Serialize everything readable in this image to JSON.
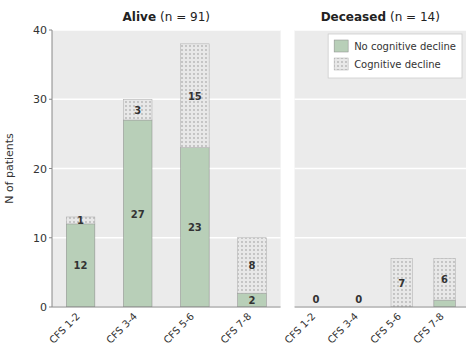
{
  "chart_data": [
    {
      "type": "bar",
      "stacked": true,
      "title": "Alive",
      "subtitle": "(n = 91)",
      "y_label": "N of patients",
      "categories": [
        "CFS 1-2",
        "CFS 3-4",
        "CFS 5-6",
        "CFS 7-8"
      ],
      "series": [
        {
          "name": "No cognitive decline",
          "color": "#b8cfb8",
          "values": [
            12,
            27,
            23,
            2
          ],
          "data_labels": true
        },
        {
          "name": "Cognitive decline",
          "color": "#e8e8e8",
          "values": [
            1,
            3,
            15,
            8
          ],
          "data_labels": true
        }
      ],
      "ylim": [
        0,
        40
      ],
      "yticks": [
        0,
        10,
        20,
        30,
        40
      ],
      "grid": true,
      "legend": false
    },
    {
      "type": "bar",
      "stacked": true,
      "title": "Deceased",
      "subtitle": "(n = 14)",
      "categories": [
        "CFS 1-2",
        "CFS 3-4",
        "CFS 5-6",
        "CFS 7-8"
      ],
      "series": [
        {
          "name": "No cognitive decline",
          "color": "#b8cfb8",
          "values": [
            0,
            0,
            0,
            1
          ],
          "data_labels": false
        },
        {
          "name": "Cognitive decline",
          "color": "#e8e8e8",
          "values": [
            0,
            0,
            7,
            6
          ],
          "data_labels": true
        }
      ],
      "ylim": [
        0,
        40
      ],
      "yticks": [
        0,
        10,
        20,
        30,
        40
      ],
      "grid": true,
      "tick_labels": "x",
      "legend": "upper right"
    }
  ]
}
